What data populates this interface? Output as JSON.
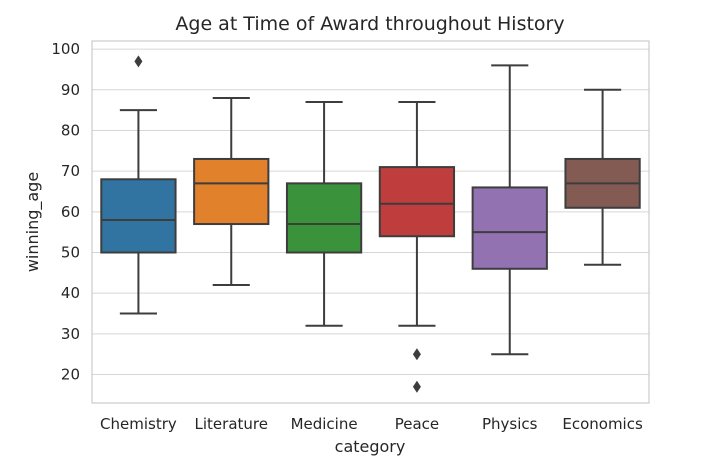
{
  "chart_data": {
    "type": "box",
    "title": "Age at Time of Award throughout History",
    "xlabel": "category",
    "ylabel": "winning_age",
    "ylim": [
      13,
      102
    ],
    "yticks": [
      20,
      30,
      40,
      50,
      60,
      70,
      80,
      90,
      100
    ],
    "grid": true,
    "categories": [
      "Chemistry",
      "Literature",
      "Medicine",
      "Peace",
      "Physics",
      "Economics"
    ],
    "series": [
      {
        "category": "Chemistry",
        "whisker_low": 35,
        "q1": 50,
        "median": 58,
        "q3": 68,
        "whisker_high": 85,
        "outliers": [
          97
        ],
        "color": "#3274a1"
      },
      {
        "category": "Literature",
        "whisker_low": 42,
        "q1": 57,
        "median": 67,
        "q3": 73,
        "whisker_high": 88,
        "outliers": [],
        "color": "#e1812c"
      },
      {
        "category": "Medicine",
        "whisker_low": 32,
        "q1": 50,
        "median": 57,
        "q3": 67,
        "whisker_high": 87,
        "outliers": [],
        "color": "#3a923a"
      },
      {
        "category": "Peace",
        "whisker_low": 32,
        "q1": 54,
        "median": 62,
        "q3": 71,
        "whisker_high": 87,
        "outliers": [
          25,
          17
        ],
        "color": "#c03d3e"
      },
      {
        "category": "Physics",
        "whisker_low": 25,
        "q1": 46,
        "median": 55,
        "q3": 66,
        "whisker_high": 96,
        "outliers": [],
        "color": "#9372b2"
      },
      {
        "category": "Economics",
        "whisker_low": 47,
        "q1": 61,
        "median": 67,
        "q3": 73,
        "whisker_high": 90,
        "outliers": [],
        "color": "#845b53"
      }
    ]
  }
}
